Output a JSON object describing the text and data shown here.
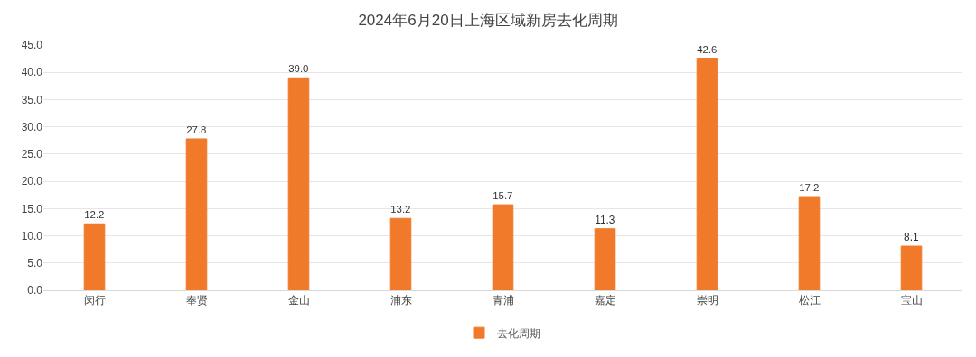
{
  "chart_data": {
    "type": "bar",
    "title": "2024年6月20日上海区域新房去化周期",
    "categories": [
      "闵行",
      "奉贤",
      "金山",
      "浦东",
      "青浦",
      "嘉定",
      "崇明",
      "松江",
      "宝山"
    ],
    "series": [
      {
        "name": "去化周期",
        "color": "#f07a2a",
        "values": [
          12.2,
          27.8,
          39.0,
          13.2,
          15.7,
          11.3,
          42.6,
          17.2,
          8.1
        ]
      }
    ],
    "value_labels": [
      "12.2",
      "27.8",
      "39.0",
      "13.2",
      "15.7",
      "11.3",
      "42.6",
      "17.2",
      "8.1"
    ],
    "ylim": [
      0,
      45
    ],
    "yticks": [
      {
        "value": 0,
        "label": "0.0"
      },
      {
        "value": 5,
        "label": "5.0"
      },
      {
        "value": 10,
        "label": "10.0"
      },
      {
        "value": 15,
        "label": "15.0"
      },
      {
        "value": 20,
        "label": "20.0"
      },
      {
        "value": 25,
        "label": "25.0"
      },
      {
        "value": 30,
        "label": "30.0"
      },
      {
        "value": 35,
        "label": "35.0"
      },
      {
        "value": 40,
        "label": "40.0"
      },
      {
        "value": 45,
        "label": "45.0"
      }
    ],
    "grid": "y",
    "legend": "bottom"
  }
}
